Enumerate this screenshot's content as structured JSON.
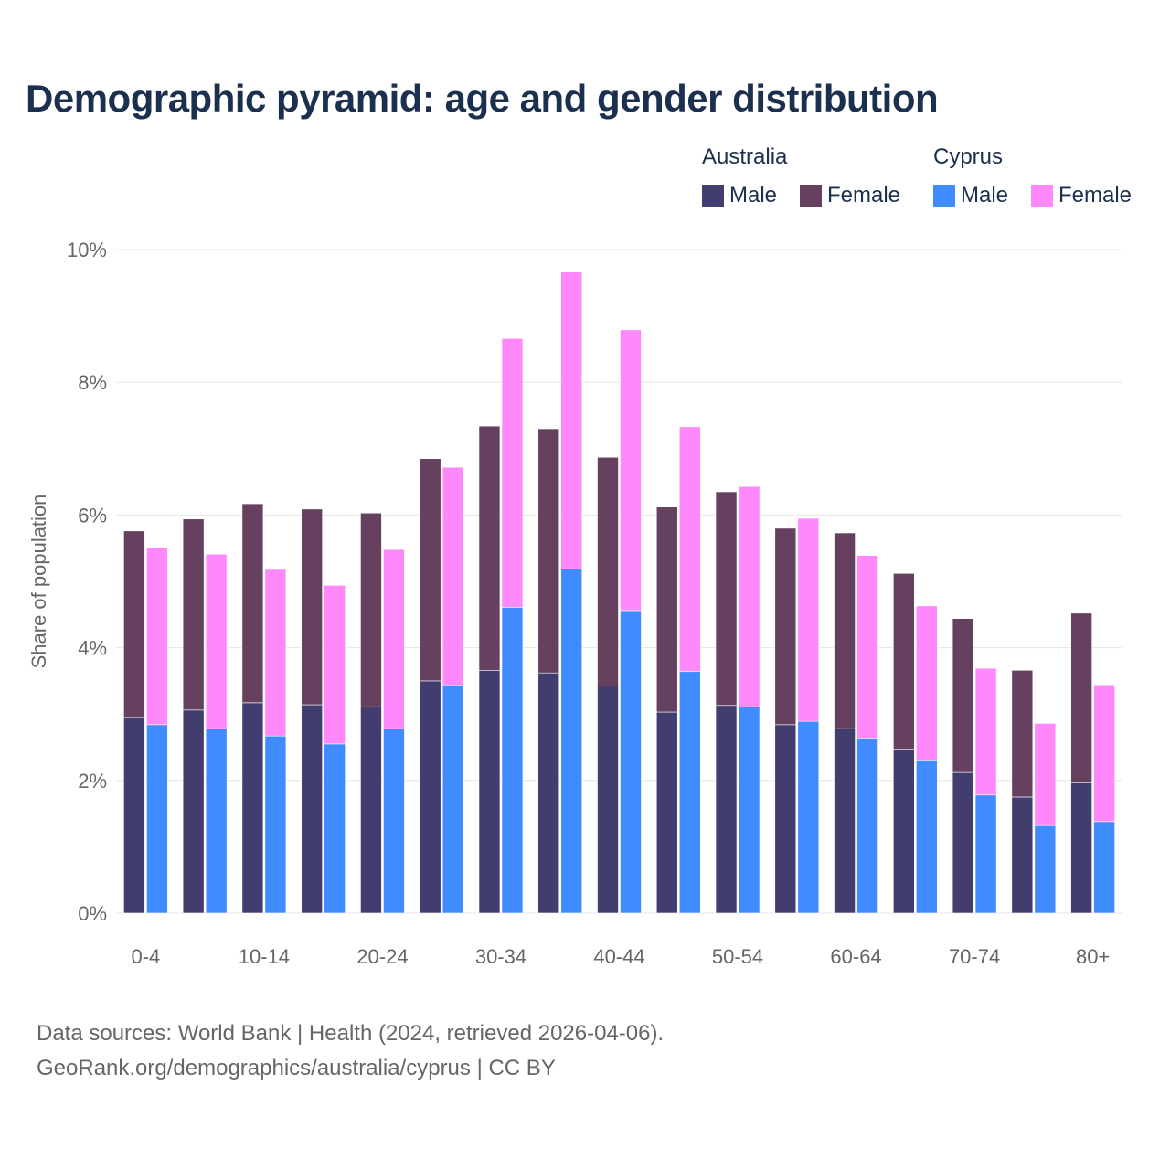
{
  "title": "Demographic pyramid: age and gender distribution",
  "legend": {
    "groups": [
      {
        "name": "Australia",
        "items": [
          {
            "label": "Male",
            "color": "#413d6e"
          },
          {
            "label": "Female",
            "color": "#65405f"
          }
        ]
      },
      {
        "name": "Cyprus",
        "items": [
          {
            "label": "Male",
            "color": "#3f8bff"
          },
          {
            "label": "Female",
            "color": "#ff88fa"
          }
        ]
      }
    ]
  },
  "source": {
    "line1": "Data sources: World Bank | Health (2024, retrieved 2026-04-06).",
    "line2": "GeoRank.org/demographics/australia/cyprus | CC BY"
  },
  "chart_data": {
    "type": "bar",
    "stacked": true,
    "title": "Demographic pyramid: age and gender distribution",
    "xlabel": "",
    "ylabel": "Share of population",
    "ylim": [
      0,
      10
    ],
    "yticks": [
      "0%",
      "2%",
      "4%",
      "6%",
      "8%",
      "10%"
    ],
    "ytick_values": [
      0,
      2,
      4,
      6,
      8,
      10
    ],
    "categories": [
      "0-4",
      "5-9",
      "10-14",
      "15-19",
      "20-24",
      "25-29",
      "30-34",
      "35-39",
      "40-44",
      "45-49",
      "50-54",
      "55-59",
      "60-64",
      "65-69",
      "70-74",
      "75-79",
      "80+"
    ],
    "xtick_labels_shown": [
      "0-4",
      "10-14",
      "20-24",
      "30-34",
      "40-44",
      "50-54",
      "60-64",
      "70-74",
      "80+"
    ],
    "series": [
      {
        "name": "Australia Male",
        "country": "Australia",
        "stack": "Australia",
        "color": "#413d6e",
        "values": [
          2.95,
          3.06,
          3.17,
          3.14,
          3.11,
          3.5,
          3.66,
          3.62,
          3.42,
          3.03,
          3.13,
          2.84,
          2.78,
          2.47,
          2.12,
          1.75,
          1.96
        ]
      },
      {
        "name": "Australia Female",
        "country": "Australia",
        "stack": "Australia",
        "color": "#65405f",
        "values": [
          2.81,
          2.88,
          3.0,
          2.95,
          2.92,
          3.35,
          3.68,
          3.68,
          3.45,
          3.09,
          3.22,
          2.96,
          2.95,
          2.65,
          2.32,
          1.91,
          2.56
        ]
      },
      {
        "name": "Cyprus Male",
        "country": "Cyprus",
        "stack": "Cyprus",
        "color": "#3f8bff",
        "values": [
          2.84,
          2.78,
          2.67,
          2.55,
          2.78,
          3.44,
          4.61,
          5.19,
          4.56,
          3.64,
          3.11,
          2.89,
          2.64,
          2.31,
          1.78,
          1.32,
          1.38
        ]
      },
      {
        "name": "Cyprus Female",
        "country": "Cyprus",
        "stack": "Cyprus",
        "color": "#ff88fa",
        "values": [
          2.66,
          2.63,
          2.51,
          2.39,
          2.7,
          3.28,
          4.05,
          4.47,
          4.23,
          3.69,
          3.32,
          3.06,
          2.75,
          2.32,
          1.91,
          1.54,
          2.06
        ]
      }
    ],
    "grid": true,
    "legend_position": "top-right"
  }
}
